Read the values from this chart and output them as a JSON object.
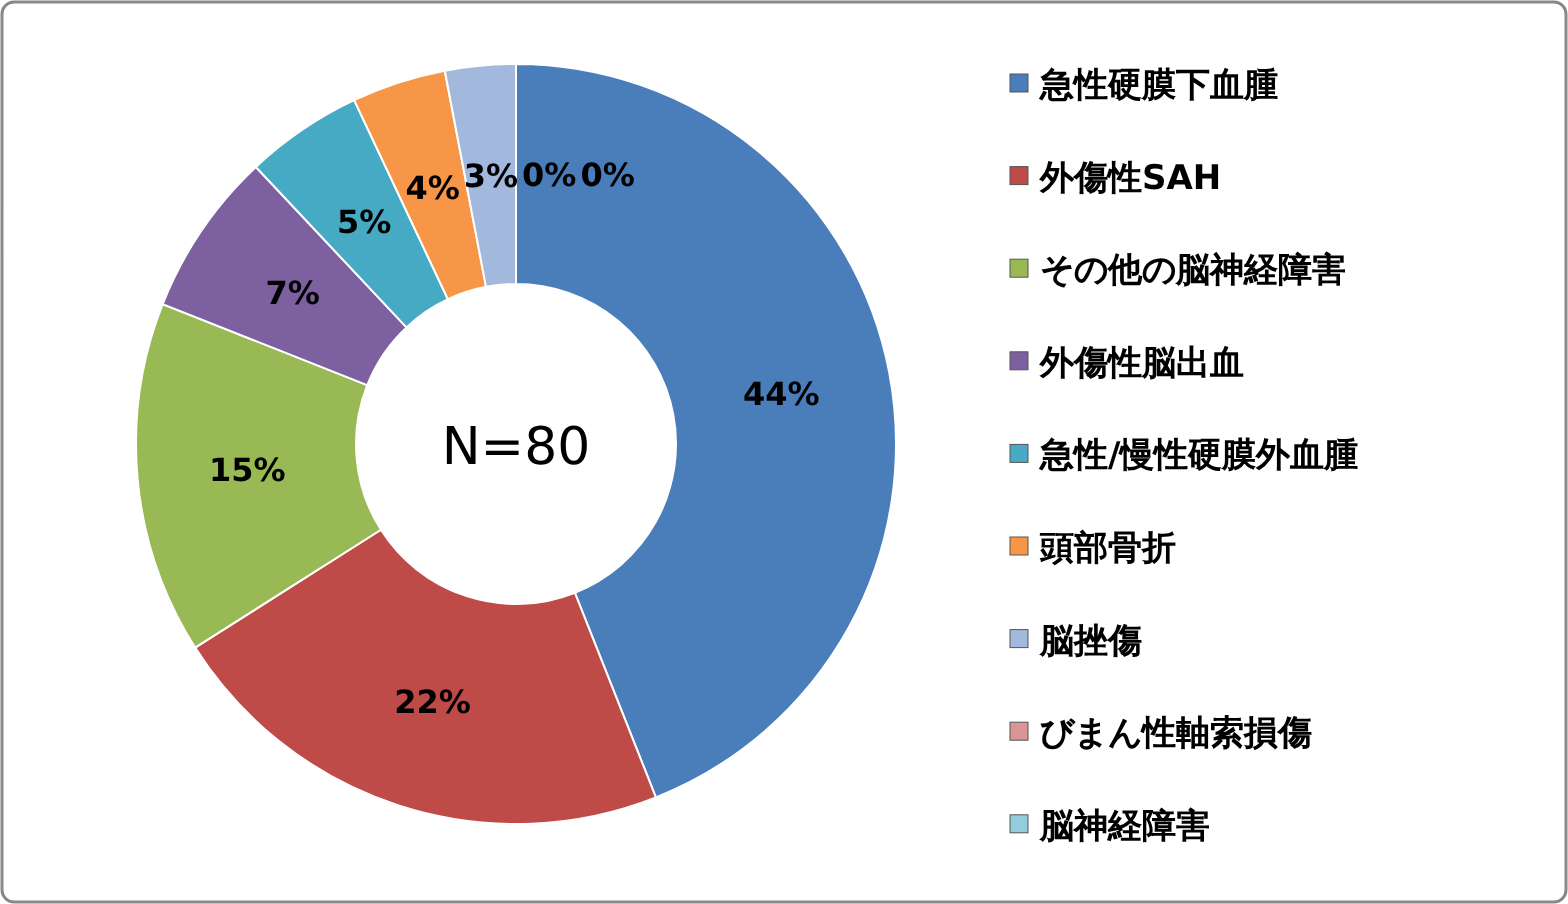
{
  "chart_data": {
    "type": "donut",
    "categories": [
      "急性硬膜下血腫",
      "外傷性SAH",
      "その他の脳神経障害",
      "外傷性脳出血",
      "急性/慢性硬膜外血腫",
      "頭部骨折",
      "脳挫傷",
      "びまん性軸索損傷",
      "脳神経障害"
    ],
    "values": [
      44,
      22,
      15,
      7,
      5,
      4,
      3,
      0,
      0
    ],
    "value_labels": [
      "44%",
      "22%",
      "15%",
      "7%",
      "5%",
      "4%",
      "3%",
      "0%",
      "0%"
    ],
    "colors": [
      "#4a7ebb",
      "#be4b48",
      "#98b954",
      "#7d60a0",
      "#46aac5",
      "#f79646",
      "#a3b8dd",
      "#d99694",
      "#93cddd"
    ],
    "annotations": [
      "N=80"
    ],
    "legend": "right"
  }
}
